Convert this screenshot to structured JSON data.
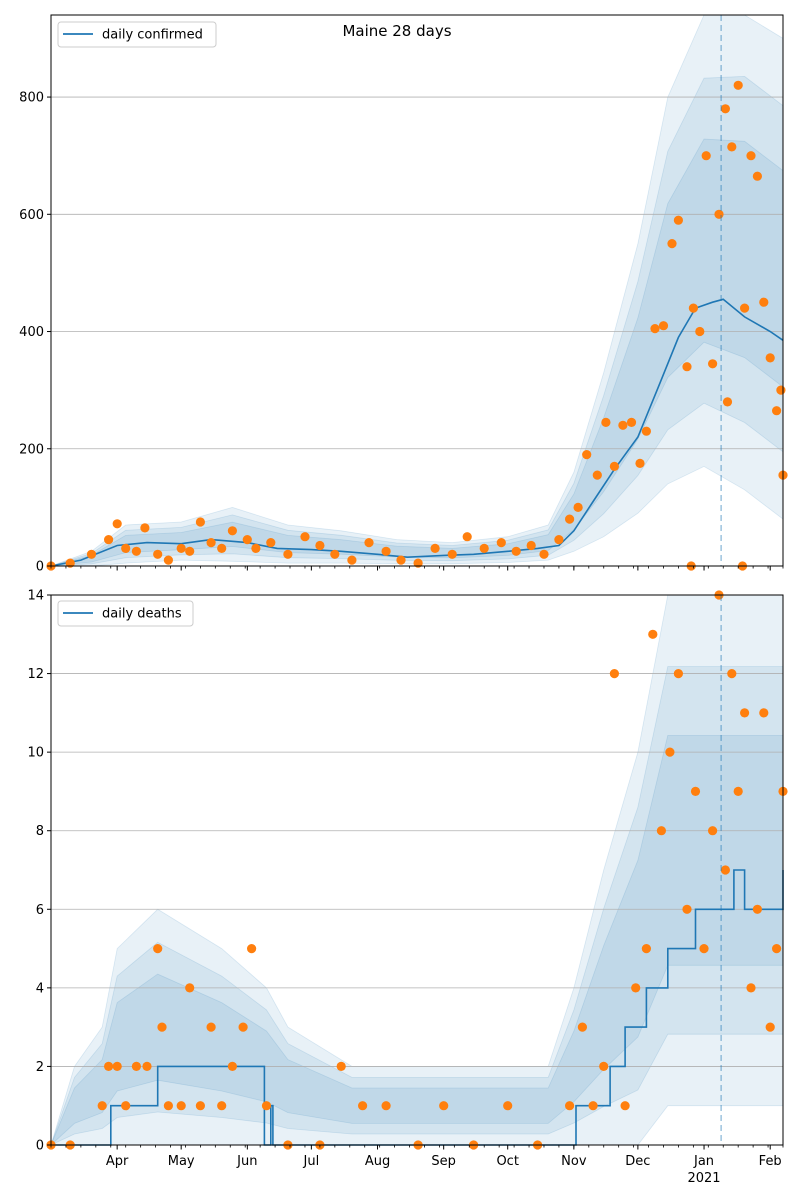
{
  "chart_data": [
    {
      "type": "line",
      "title": "Maine 28 days",
      "legend": {
        "placement": "top-left",
        "entries": [
          "daily confirmed"
        ]
      },
      "series": [
        {
          "name": "daily confirmed",
          "kind": "line",
          "color": "#1f77b4",
          "x": [
            "2020-03-01",
            "2020-03-15",
            "2020-04-01",
            "2020-04-15",
            "2020-05-01",
            "2020-05-15",
            "2020-06-01",
            "2020-06-15",
            "2020-07-01",
            "2020-07-15",
            "2020-08-01",
            "2020-08-15",
            "2020-09-01",
            "2020-09-15",
            "2020-10-01",
            "2020-10-15",
            "2020-10-25",
            "2020-11-01",
            "2020-11-10",
            "2020-11-20",
            "2020-12-01",
            "2020-12-10",
            "2020-12-20",
            "2020-12-28",
            "2021-01-05",
            "2021-01-10",
            "2021-01-20",
            "2021-02-01",
            "2021-02-07"
          ],
          "y": [
            0,
            10,
            35,
            40,
            38,
            45,
            40,
            30,
            28,
            25,
            20,
            15,
            18,
            20,
            25,
            30,
            35,
            60,
            110,
            165,
            220,
            300,
            390,
            440,
            450,
            455,
            425,
            400,
            385
          ]
        },
        {
          "name": "observed daily confirmed",
          "kind": "points",
          "color": "#ff7f0e",
          "x": [
            "2020-03-01",
            "2020-03-10",
            "2020-03-20",
            "2020-03-28",
            "2020-04-01",
            "2020-04-05",
            "2020-04-10",
            "2020-04-14",
            "2020-04-20",
            "2020-04-25",
            "2020-05-01",
            "2020-05-05",
            "2020-05-10",
            "2020-05-15",
            "2020-05-20",
            "2020-05-25",
            "2020-06-01",
            "2020-06-05",
            "2020-06-12",
            "2020-06-20",
            "2020-06-28",
            "2020-07-05",
            "2020-07-12",
            "2020-07-20",
            "2020-07-28",
            "2020-08-05",
            "2020-08-12",
            "2020-08-20",
            "2020-08-28",
            "2020-09-05",
            "2020-09-12",
            "2020-09-20",
            "2020-09-28",
            "2020-10-05",
            "2020-10-12",
            "2020-10-18",
            "2020-10-25",
            "2020-10-30",
            "2020-11-03",
            "2020-11-07",
            "2020-11-12",
            "2020-11-16",
            "2020-11-20",
            "2020-11-24",
            "2020-11-28",
            "2020-12-02",
            "2020-12-05",
            "2020-12-09",
            "2020-12-13",
            "2020-12-17",
            "2020-12-20",
            "2020-12-24",
            "2020-12-27",
            "2020-12-30",
            "2021-01-02",
            "2021-01-05",
            "2021-01-08",
            "2021-01-11",
            "2021-01-14",
            "2021-01-17",
            "2021-01-20",
            "2021-01-23",
            "2021-01-26",
            "2021-01-29",
            "2021-02-01",
            "2021-02-04",
            "2021-02-07"
          ],
          "y": [
            0,
            5,
            20,
            45,
            72,
            30,
            25,
            65,
            20,
            10,
            30,
            25,
            75,
            40,
            30,
            60,
            45,
            30,
            40,
            20,
            50,
            35,
            20,
            10,
            40,
            25,
            10,
            5,
            30,
            20,
            50,
            30,
            40,
            25,
            35,
            20,
            45,
            80,
            100,
            190,
            155,
            245,
            170,
            240,
            245,
            175,
            230,
            405,
            410,
            550,
            590,
            340,
            440,
            400,
            700,
            345,
            600,
            780,
            715,
            820,
            440,
            700,
            665,
            450,
            355,
            265,
            155
          ]
        },
        {
          "name": "observed daily confirmed (outliers)",
          "kind": "points",
          "color": "#ff7f0e",
          "x": [
            "2020-12-26",
            "2021-01-19",
            "2021-01-12",
            "2021-02-06"
          ],
          "y": [
            0,
            0,
            280,
            300
          ]
        }
      ],
      "bands": [
        {
          "x": [
            "2020-03-01",
            "2020-03-20",
            "2020-04-05",
            "2020-05-01",
            "2020-05-25",
            "2020-06-20",
            "2020-07-15",
            "2020-08-10",
            "2020-09-05",
            "2020-10-01",
            "2020-10-20",
            "2020-11-01",
            "2020-11-15",
            "2020-12-01",
            "2020-12-15",
            "2021-01-01",
            "2021-01-20",
            "2021-02-07"
          ],
          "lo": [
            0,
            0,
            5,
            10,
            8,
            5,
            5,
            4,
            4,
            6,
            10,
            25,
            50,
            90,
            140,
            170,
            130,
            80
          ],
          "hi": [
            0,
            25,
            70,
            75,
            100,
            70,
            60,
            45,
            40,
            50,
            70,
            160,
            330,
            550,
            800,
            940,
            950,
            900
          ]
        }
      ],
      "vline": {
        "x": "2021-01-09",
        "style": "dashed"
      },
      "ylim": [
        0,
        940
      ],
      "yticks": [
        0,
        200,
        400,
        600,
        800
      ],
      "grid": "y",
      "xlabel": "",
      "ylabel": ""
    },
    {
      "type": "line",
      "title": "",
      "legend": {
        "placement": "top-left",
        "entries": [
          "daily deaths"
        ]
      },
      "series": [
        {
          "name": "daily deaths",
          "kind": "step",
          "color": "#1f77b4",
          "x": [
            "2020-03-01",
            "2020-03-29",
            "2020-04-20",
            "2020-06-08",
            "2020-06-09",
            "2020-06-12",
            "2020-06-13",
            "2020-10-20",
            "2020-11-01",
            "2020-11-02",
            "2020-11-08",
            "2020-11-18",
            "2020-11-25",
            "2020-12-05",
            "2020-12-15",
            "2020-12-25",
            "2020-12-28",
            "2021-01-05",
            "2021-01-15",
            "2021-01-20",
            "2021-01-25",
            "2021-02-01",
            "2021-02-07"
          ],
          "y": [
            0,
            1,
            2,
            2,
            0,
            1,
            0,
            0,
            0,
            1,
            1,
            2,
            3,
            4,
            5,
            5,
            6,
            6,
            7,
            6,
            6,
            6,
            7
          ]
        },
        {
          "name": "observed daily deaths",
          "kind": "points",
          "color": "#ff7f0e",
          "x": [
            "2020-03-01",
            "2020-03-10",
            "2020-03-25",
            "2020-03-28",
            "2020-04-01",
            "2020-04-05",
            "2020-04-10",
            "2020-04-15",
            "2020-04-20",
            "2020-04-22",
            "2020-04-25",
            "2020-05-01",
            "2020-05-05",
            "2020-05-10",
            "2020-05-15",
            "2020-05-20",
            "2020-05-25",
            "2020-05-30",
            "2020-06-03",
            "2020-06-10",
            "2020-06-20",
            "2020-07-05",
            "2020-07-15",
            "2020-07-25",
            "2020-08-05",
            "2020-08-20",
            "2020-09-01",
            "2020-09-15",
            "2020-10-01",
            "2020-10-15",
            "2020-10-30",
            "2020-11-05",
            "2020-11-10",
            "2020-11-15",
            "2020-11-20",
            "2020-11-25",
            "2020-11-30",
            "2020-12-05",
            "2020-12-08",
            "2020-12-12",
            "2020-12-16",
            "2020-12-20",
            "2020-12-24",
            "2020-12-28",
            "2021-01-01",
            "2021-01-05",
            "2021-01-08",
            "2021-01-11",
            "2021-01-14",
            "2021-01-17",
            "2021-01-20",
            "2021-01-23",
            "2021-01-26",
            "2021-01-29",
            "2021-02-01",
            "2021-02-04",
            "2021-02-07"
          ],
          "y": [
            0,
            0,
            1,
            2,
            2,
            1,
            2,
            2,
            5,
            3,
            1,
            1,
            4,
            1,
            3,
            1,
            2,
            3,
            5,
            1,
            0,
            0,
            2,
            1,
            1,
            0,
            1,
            0,
            1,
            0,
            1,
            3,
            1,
            2,
            12,
            1,
            4,
            5,
            13,
            8,
            10,
            12,
            6,
            9,
            5,
            8,
            14,
            7,
            12,
            9,
            11,
            4,
            6,
            11,
            3,
            5,
            9
          ]
        }
      ],
      "bands": [
        {
          "x": [
            "2020-03-01",
            "2020-03-12",
            "2020-03-25",
            "2020-04-01",
            "2020-04-20",
            "2020-05-20",
            "2020-06-10",
            "2020-06-20",
            "2020-07-20",
            "2020-08-20",
            "2020-09-20",
            "2020-10-20",
            "2020-11-01",
            "2020-11-15",
            "2020-12-01",
            "2020-12-15",
            "2021-01-01",
            "2021-01-20",
            "2021-02-07"
          ],
          "lo": [
            0,
            0,
            0,
            0,
            0,
            0,
            0,
            0,
            0,
            0,
            0,
            0,
            0,
            0,
            0,
            1,
            1,
            1,
            1
          ],
          "hi": [
            0,
            2,
            3,
            5,
            6,
            5,
            4,
            3,
            2,
            2,
            2,
            2,
            4,
            7,
            10,
            14,
            14,
            14,
            14
          ]
        }
      ],
      "vline": {
        "x": "2021-01-09",
        "style": "dashed"
      },
      "ylim": [
        0,
        14
      ],
      "yticks": [
        0,
        2,
        4,
        6,
        8,
        10,
        12,
        14
      ],
      "grid": "y",
      "xlabel": "",
      "ylabel": ""
    }
  ],
  "xaxis": {
    "min": "2020-03-01",
    "max": "2021-02-07",
    "ticks": [
      {
        "date": "2020-04-01",
        "label": "Apr"
      },
      {
        "date": "2020-05-01",
        "label": "May"
      },
      {
        "date": "2020-06-01",
        "label": "Jun"
      },
      {
        "date": "2020-07-01",
        "label": "Jul"
      },
      {
        "date": "2020-08-01",
        "label": "Aug"
      },
      {
        "date": "2020-09-01",
        "label": "Sep"
      },
      {
        "date": "2020-10-01",
        "label": "Oct"
      },
      {
        "date": "2020-11-01",
        "label": "Nov"
      },
      {
        "date": "2020-12-01",
        "label": "Dec"
      },
      {
        "date": "2021-01-01",
        "label": "Jan",
        "year": "2021"
      },
      {
        "date": "2021-02-01",
        "label": "Feb"
      }
    ]
  },
  "colors": {
    "line": "#1f77b4",
    "points": "#ff7f0e",
    "band": "#1f77b4",
    "grid": "#b0b0b0"
  }
}
